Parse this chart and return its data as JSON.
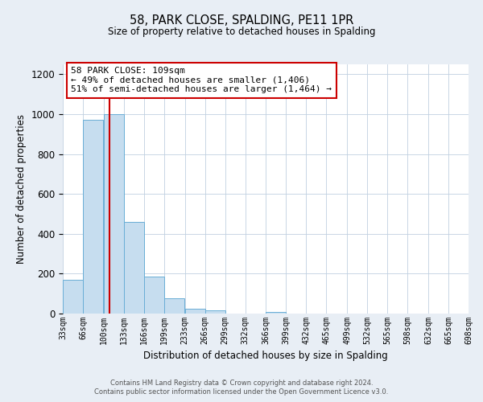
{
  "title": "58, PARK CLOSE, SPALDING, PE11 1PR",
  "subtitle": "Size of property relative to detached houses in Spalding",
  "xlabel": "Distribution of detached houses by size in Spalding",
  "ylabel": "Number of detached properties",
  "bar_values": [
    170,
    970,
    1000,
    460,
    185,
    75,
    25,
    15,
    0,
    0,
    10,
    0,
    0,
    0,
    0,
    0,
    0,
    0,
    0,
    0
  ],
  "bin_edges": [
    33,
    66,
    100,
    133,
    166,
    199,
    233,
    266,
    299,
    332,
    366,
    399,
    432,
    465,
    499,
    532,
    565,
    598,
    632,
    665,
    698
  ],
  "tick_labels": [
    "33sqm",
    "66sqm",
    "100sqm",
    "133sqm",
    "166sqm",
    "199sqm",
    "233sqm",
    "266sqm",
    "299sqm",
    "332sqm",
    "366sqm",
    "399sqm",
    "432sqm",
    "465sqm",
    "499sqm",
    "532sqm",
    "565sqm",
    "598sqm",
    "632sqm",
    "665sqm",
    "698sqm"
  ],
  "bar_color": "#c6ddef",
  "bar_edge_color": "#6aaed6",
  "property_line_x": 109,
  "property_line_color": "#cc0000",
  "ylim": [
    0,
    1250
  ],
  "yticks": [
    0,
    200,
    400,
    600,
    800,
    1000,
    1200
  ],
  "annotation_title": "58 PARK CLOSE: 109sqm",
  "annotation_line1": "← 49% of detached houses are smaller (1,406)",
  "annotation_line2": "51% of semi-detached houses are larger (1,464) →",
  "annotation_box_color": "#ffffff",
  "annotation_border_color": "#cc0000",
  "footer1": "Contains HM Land Registry data © Crown copyright and database right 2024.",
  "footer2": "Contains public sector information licensed under the Open Government Licence v3.0.",
  "background_color": "#e8eef5",
  "plot_background_color": "#ffffff"
}
